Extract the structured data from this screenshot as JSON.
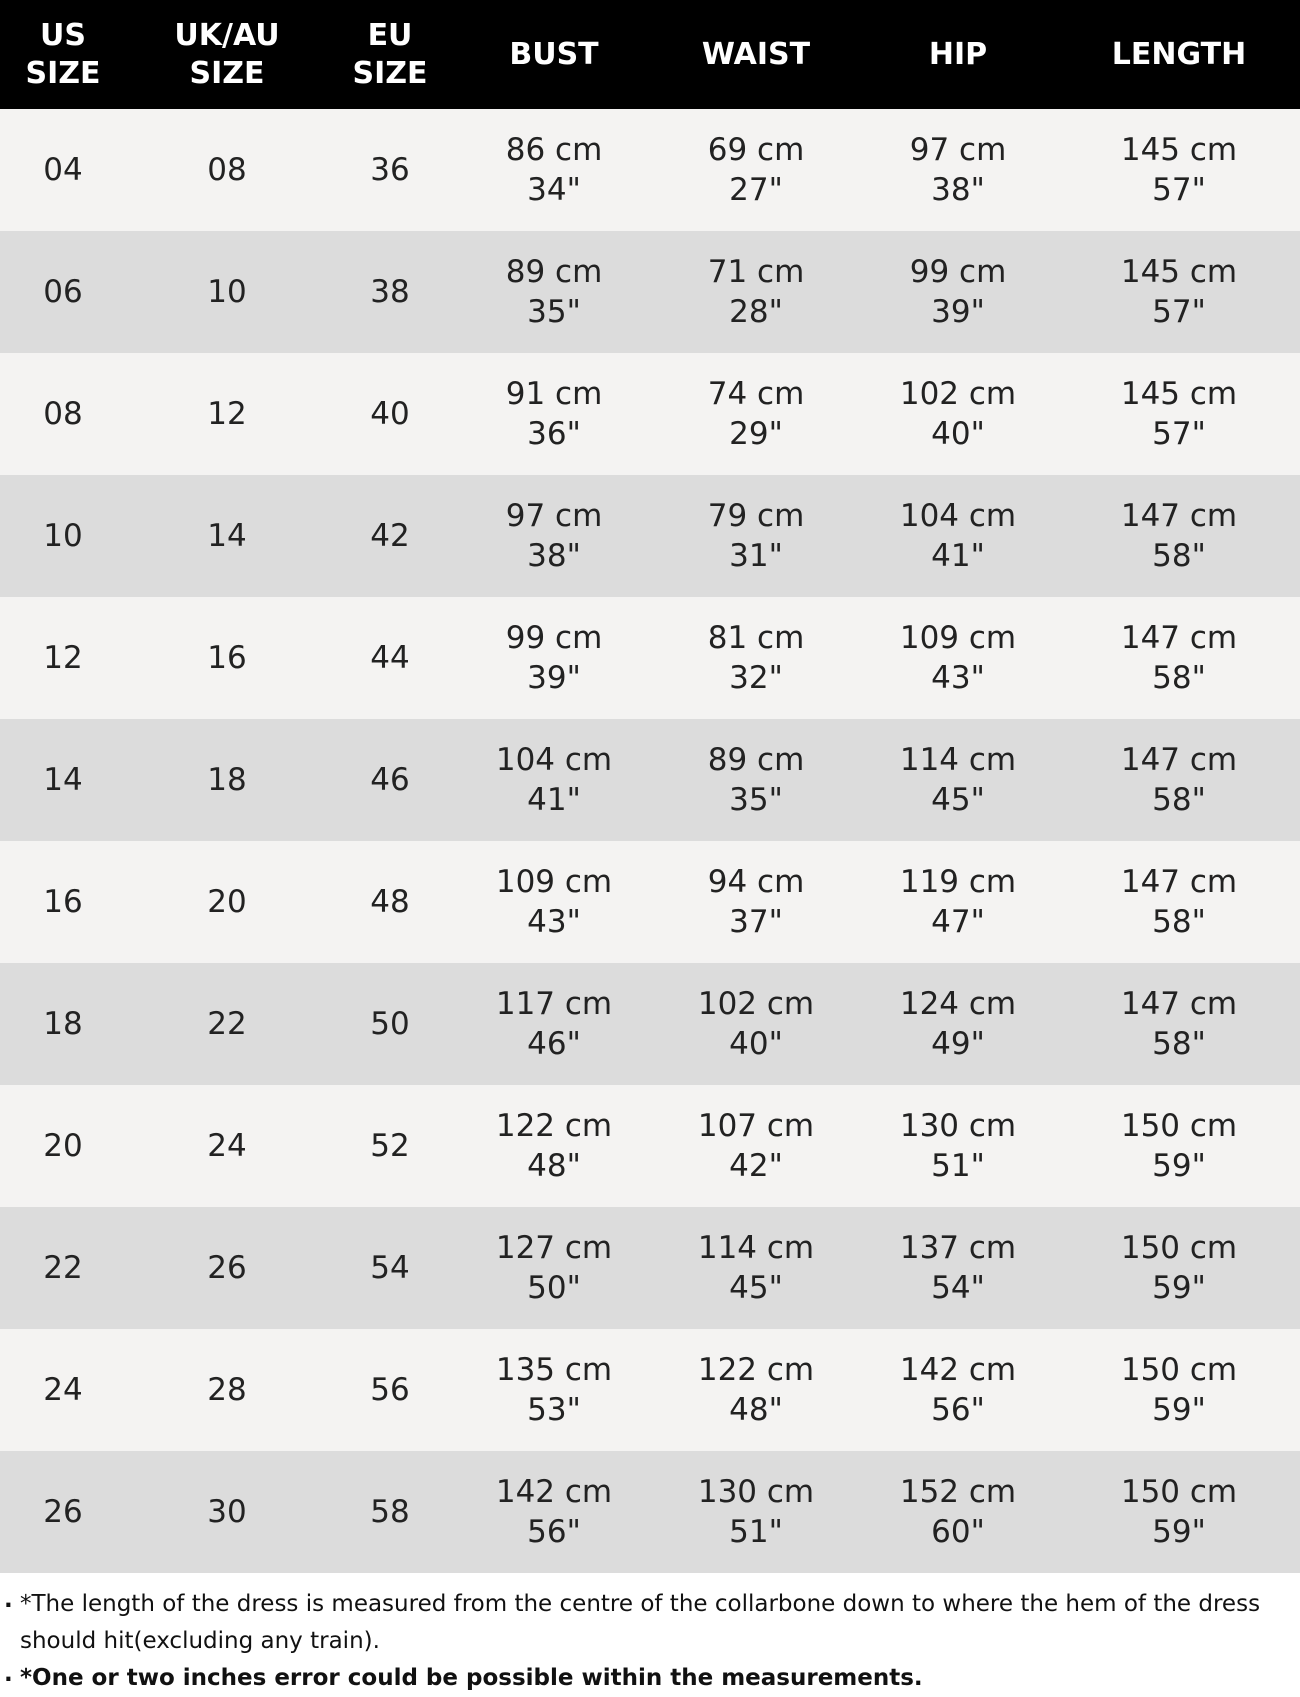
{
  "table": {
    "header": [
      [
        "US",
        "SIZE"
      ],
      [
        "UK/AU",
        "SIZE"
      ],
      [
        "EU",
        "SIZE"
      ],
      [
        "BUST"
      ],
      [
        "WAIST"
      ],
      [
        "HIP"
      ],
      [
        "LENGTH"
      ]
    ],
    "rows": [
      [
        "04",
        "08",
        "36",
        [
          "86 cm",
          "34\""
        ],
        [
          "69 cm",
          "27\""
        ],
        [
          "97 cm",
          "38\""
        ],
        [
          "145 cm",
          "57\""
        ]
      ],
      [
        "06",
        "10",
        "38",
        [
          "89 cm",
          "35\""
        ],
        [
          "71 cm",
          "28\""
        ],
        [
          "99 cm",
          "39\""
        ],
        [
          "145 cm",
          "57\""
        ]
      ],
      [
        "08",
        "12",
        "40",
        [
          "91 cm",
          "36\""
        ],
        [
          "74 cm",
          "29\""
        ],
        [
          "102 cm",
          "40\""
        ],
        [
          "145 cm",
          "57\""
        ]
      ],
      [
        "10",
        "14",
        "42",
        [
          "97 cm",
          "38\""
        ],
        [
          "79 cm",
          "31\""
        ],
        [
          "104 cm",
          "41\""
        ],
        [
          "147 cm",
          "58\""
        ]
      ],
      [
        "12",
        "16",
        "44",
        [
          "99 cm",
          "39\""
        ],
        [
          "81 cm",
          "32\""
        ],
        [
          "109 cm",
          "43\""
        ],
        [
          "147 cm",
          "58\""
        ]
      ],
      [
        "14",
        "18",
        "46",
        [
          "104 cm",
          "41\""
        ],
        [
          "89 cm",
          "35\""
        ],
        [
          "114 cm",
          "45\""
        ],
        [
          "147 cm",
          "58\""
        ]
      ],
      [
        "16",
        "20",
        "48",
        [
          "109 cm",
          "43\""
        ],
        [
          "94 cm",
          "37\""
        ],
        [
          "119 cm",
          "47\""
        ],
        [
          "147 cm",
          "58\""
        ]
      ],
      [
        "18",
        "22",
        "50",
        [
          "117 cm",
          "46\""
        ],
        [
          "102 cm",
          "40\""
        ],
        [
          "124 cm",
          "49\""
        ],
        [
          "147 cm",
          "58\""
        ]
      ],
      [
        "20",
        "24",
        "52",
        [
          "122 cm",
          "48\""
        ],
        [
          "107 cm",
          "42\""
        ],
        [
          "130 cm",
          "51\""
        ],
        [
          "150 cm",
          "59\""
        ]
      ],
      [
        "22",
        "26",
        "54",
        [
          "127 cm",
          "50\""
        ],
        [
          "114 cm",
          "45\""
        ],
        [
          "137 cm",
          "54\""
        ],
        [
          "150 cm",
          "59\""
        ]
      ],
      [
        "24",
        "28",
        "56",
        [
          "135 cm",
          "53\""
        ],
        [
          "122 cm",
          "48\""
        ],
        [
          "142 cm",
          "56\""
        ],
        [
          "150 cm",
          "59\""
        ]
      ],
      [
        "26",
        "30",
        "58",
        [
          "142 cm",
          "56\""
        ],
        [
          "130 cm",
          "51\""
        ],
        [
          "152 cm",
          "60\""
        ],
        [
          "150 cm",
          "59\""
        ]
      ]
    ]
  },
  "notes": [
    "*The length of the dress is measured from the centre of the collarbone down to where the hem of the dress should hit(excluding any train).",
    "*One or two inches error could be possible within the measurements."
  ]
}
